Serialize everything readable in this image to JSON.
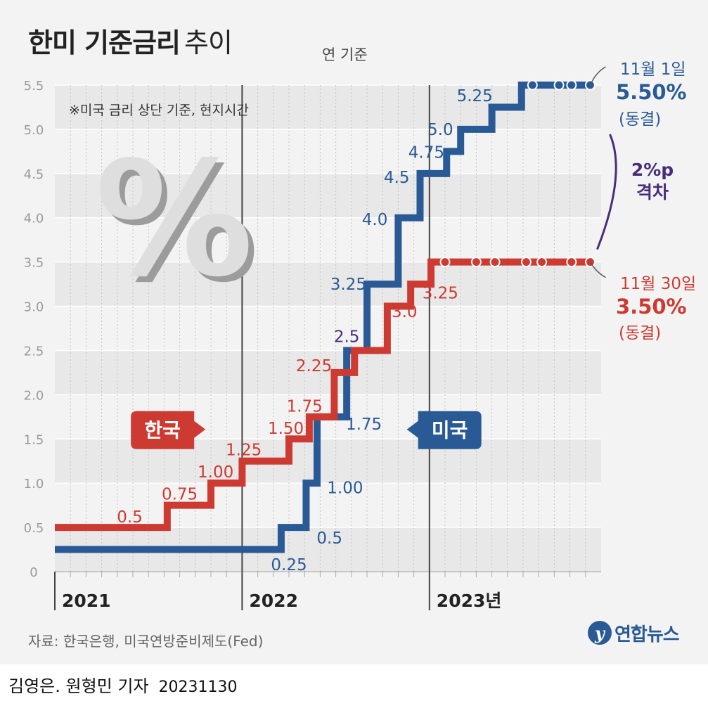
{
  "title_main": "한미 기준금리",
  "title_sub": "추이",
  "unit_note": "연 기준",
  "footnote": "※미국 금리 상단 기준, 현지시간",
  "source": "자료: 한국은행, 미국연방준비제도(Fed)",
  "logo": {
    "mark": "y",
    "text": "연합뉴스"
  },
  "byline": {
    "author": "김영은. 원형민 기자",
    "date": "20231130"
  },
  "decor_symbol": "%",
  "gap_label": {
    "line1": "2%p",
    "line2": "격차"
  },
  "us_callout": {
    "line1": "11월 1일",
    "value": "5.50%",
    "status": "(동결)"
  },
  "kr_callout": {
    "line1": "11월 30일",
    "value": "3.50%",
    "status": "(동결)"
  },
  "colors": {
    "us": "#2a5a96",
    "kr": "#cd3a32",
    "purple": "#4a2d7a",
    "grid_band": "#e8e8e8"
  },
  "chart_data": {
    "type": "line",
    "step": true,
    "title": "한미 기준금리 추이",
    "ylabel": "연 기준 (%)",
    "ylim": [
      0,
      5.5
    ],
    "yticks": [
      0,
      0.5,
      1.0,
      1.5,
      2.0,
      2.5,
      3.0,
      3.5,
      4.0,
      4.5,
      5.0,
      5.5
    ],
    "ytick_labels": [
      "0",
      "0.5",
      "1.0",
      "1.5",
      "2.0",
      "2.5",
      "3.0",
      "3.5",
      "4.0",
      "4.5",
      "5.0",
      "5.5"
    ],
    "xlim": [
      0,
      35
    ],
    "x_unit": "months since Jan 2021",
    "year_labels": [
      {
        "x": 0,
        "label": "2021"
      },
      {
        "x": 12,
        "label": "2022"
      },
      {
        "x": 24,
        "label": "2023년"
      }
    ],
    "series": [
      {
        "name": "미국",
        "color": "#2a5a96",
        "start": 0.25,
        "changes": [
          {
            "x": 14.5,
            "value": 0.5
          },
          {
            "x": 16.1,
            "value": 1.0
          },
          {
            "x": 16.8,
            "value": 1.75
          },
          {
            "x": 18.7,
            "value": 2.5
          },
          {
            "x": 20.0,
            "value": 3.25
          },
          {
            "x": 22.0,
            "value": 4.0
          },
          {
            "x": 23.4,
            "value": 4.5
          },
          {
            "x": 25.1,
            "value": 4.75
          },
          {
            "x": 26.0,
            "value": 5.0
          },
          {
            "x": 28.0,
            "value": 5.25
          },
          {
            "x": 29.9,
            "value": 5.5
          }
        ],
        "end": 34.3,
        "hold_markers": [
          30.6,
          32.3,
          33.1,
          34.3
        ],
        "step_labels": [
          {
            "text": "0.25",
            "x": 15.0,
            "y": 0.08,
            "color": "#2a5a96"
          },
          {
            "text": "0.5",
            "x": 17.6,
            "y": 0.38,
            "color": "#2a5a96"
          },
          {
            "text": "1.00",
            "x": 18.6,
            "y": 0.95,
            "color": "#2a5a96"
          },
          {
            "text": "1.75",
            "x": 19.8,
            "y": 1.67,
            "color": "#2a5a96"
          },
          {
            "text": "2.5",
            "x": 18.7,
            "y": 2.66,
            "color": "#4a2d7a"
          },
          {
            "text": "3.25",
            "x": 18.8,
            "y": 3.25,
            "color": "#2a5a96"
          },
          {
            "text": "4.0",
            "x": 20.5,
            "y": 3.98,
            "color": "#2a5a96"
          },
          {
            "text": "4.5",
            "x": 21.9,
            "y": 4.46,
            "color": "#2a5a96"
          },
          {
            "text": "4.75",
            "x": 23.8,
            "y": 4.74,
            "color": "#2a5a96"
          },
          {
            "text": "5.0",
            "x": 24.7,
            "y": 5.0,
            "color": "#2a5a96"
          },
          {
            "text": "5.25",
            "x": 26.9,
            "y": 5.38,
            "color": "#2a5a96"
          }
        ]
      },
      {
        "name": "한국",
        "color": "#cd3a32",
        "start": 0.5,
        "changes": [
          {
            "x": 7.2,
            "value": 0.75
          },
          {
            "x": 10.0,
            "value": 1.0
          },
          {
            "x": 12.0,
            "value": 1.25
          },
          {
            "x": 15.0,
            "value": 1.5
          },
          {
            "x": 16.3,
            "value": 1.75
          },
          {
            "x": 17.9,
            "value": 2.25
          },
          {
            "x": 19.2,
            "value": 2.5
          },
          {
            "x": 21.3,
            "value": 3.0
          },
          {
            "x": 22.8,
            "value": 3.25
          },
          {
            "x": 24.1,
            "value": 3.5
          }
        ],
        "end": 34.3,
        "hold_markers": [
          25.0,
          27.0,
          28.2,
          30.2,
          31.2,
          33.1,
          34.3
        ],
        "step_labels": [
          {
            "text": "0.5",
            "x": 4.8,
            "y": 0.62,
            "color": "#cd3a32"
          },
          {
            "text": "0.75",
            "x": 8.0,
            "y": 0.88,
            "color": "#cd3a32"
          },
          {
            "text": "1.00",
            "x": 10.3,
            "y": 1.13,
            "color": "#cd3a32"
          },
          {
            "text": "1.25",
            "x": 12.1,
            "y": 1.38,
            "color": "#cd3a32"
          },
          {
            "text": "1.50",
            "x": 14.8,
            "y": 1.62,
            "color": "#cd3a32"
          },
          {
            "text": "1.75",
            "x": 16.0,
            "y": 1.87,
            "color": "#cd3a32"
          },
          {
            "text": "2.25",
            "x": 16.6,
            "y": 2.33,
            "color": "#cd3a32"
          },
          {
            "text": "3.0",
            "x": 22.4,
            "y": 2.94,
            "color": "#cd3a32"
          },
          {
            "text": "3.25",
            "x": 24.7,
            "y": 3.15,
            "color": "#cd3a32"
          }
        ]
      }
    ],
    "legend": [
      {
        "label": "한국",
        "color": "#cd3a32",
        "x": 6.9,
        "y": 1.6,
        "pointer": "right"
      },
      {
        "label": "미국",
        "color": "#2a5a96",
        "x": 25.3,
        "y": 1.6,
        "pointer": "left"
      }
    ]
  }
}
